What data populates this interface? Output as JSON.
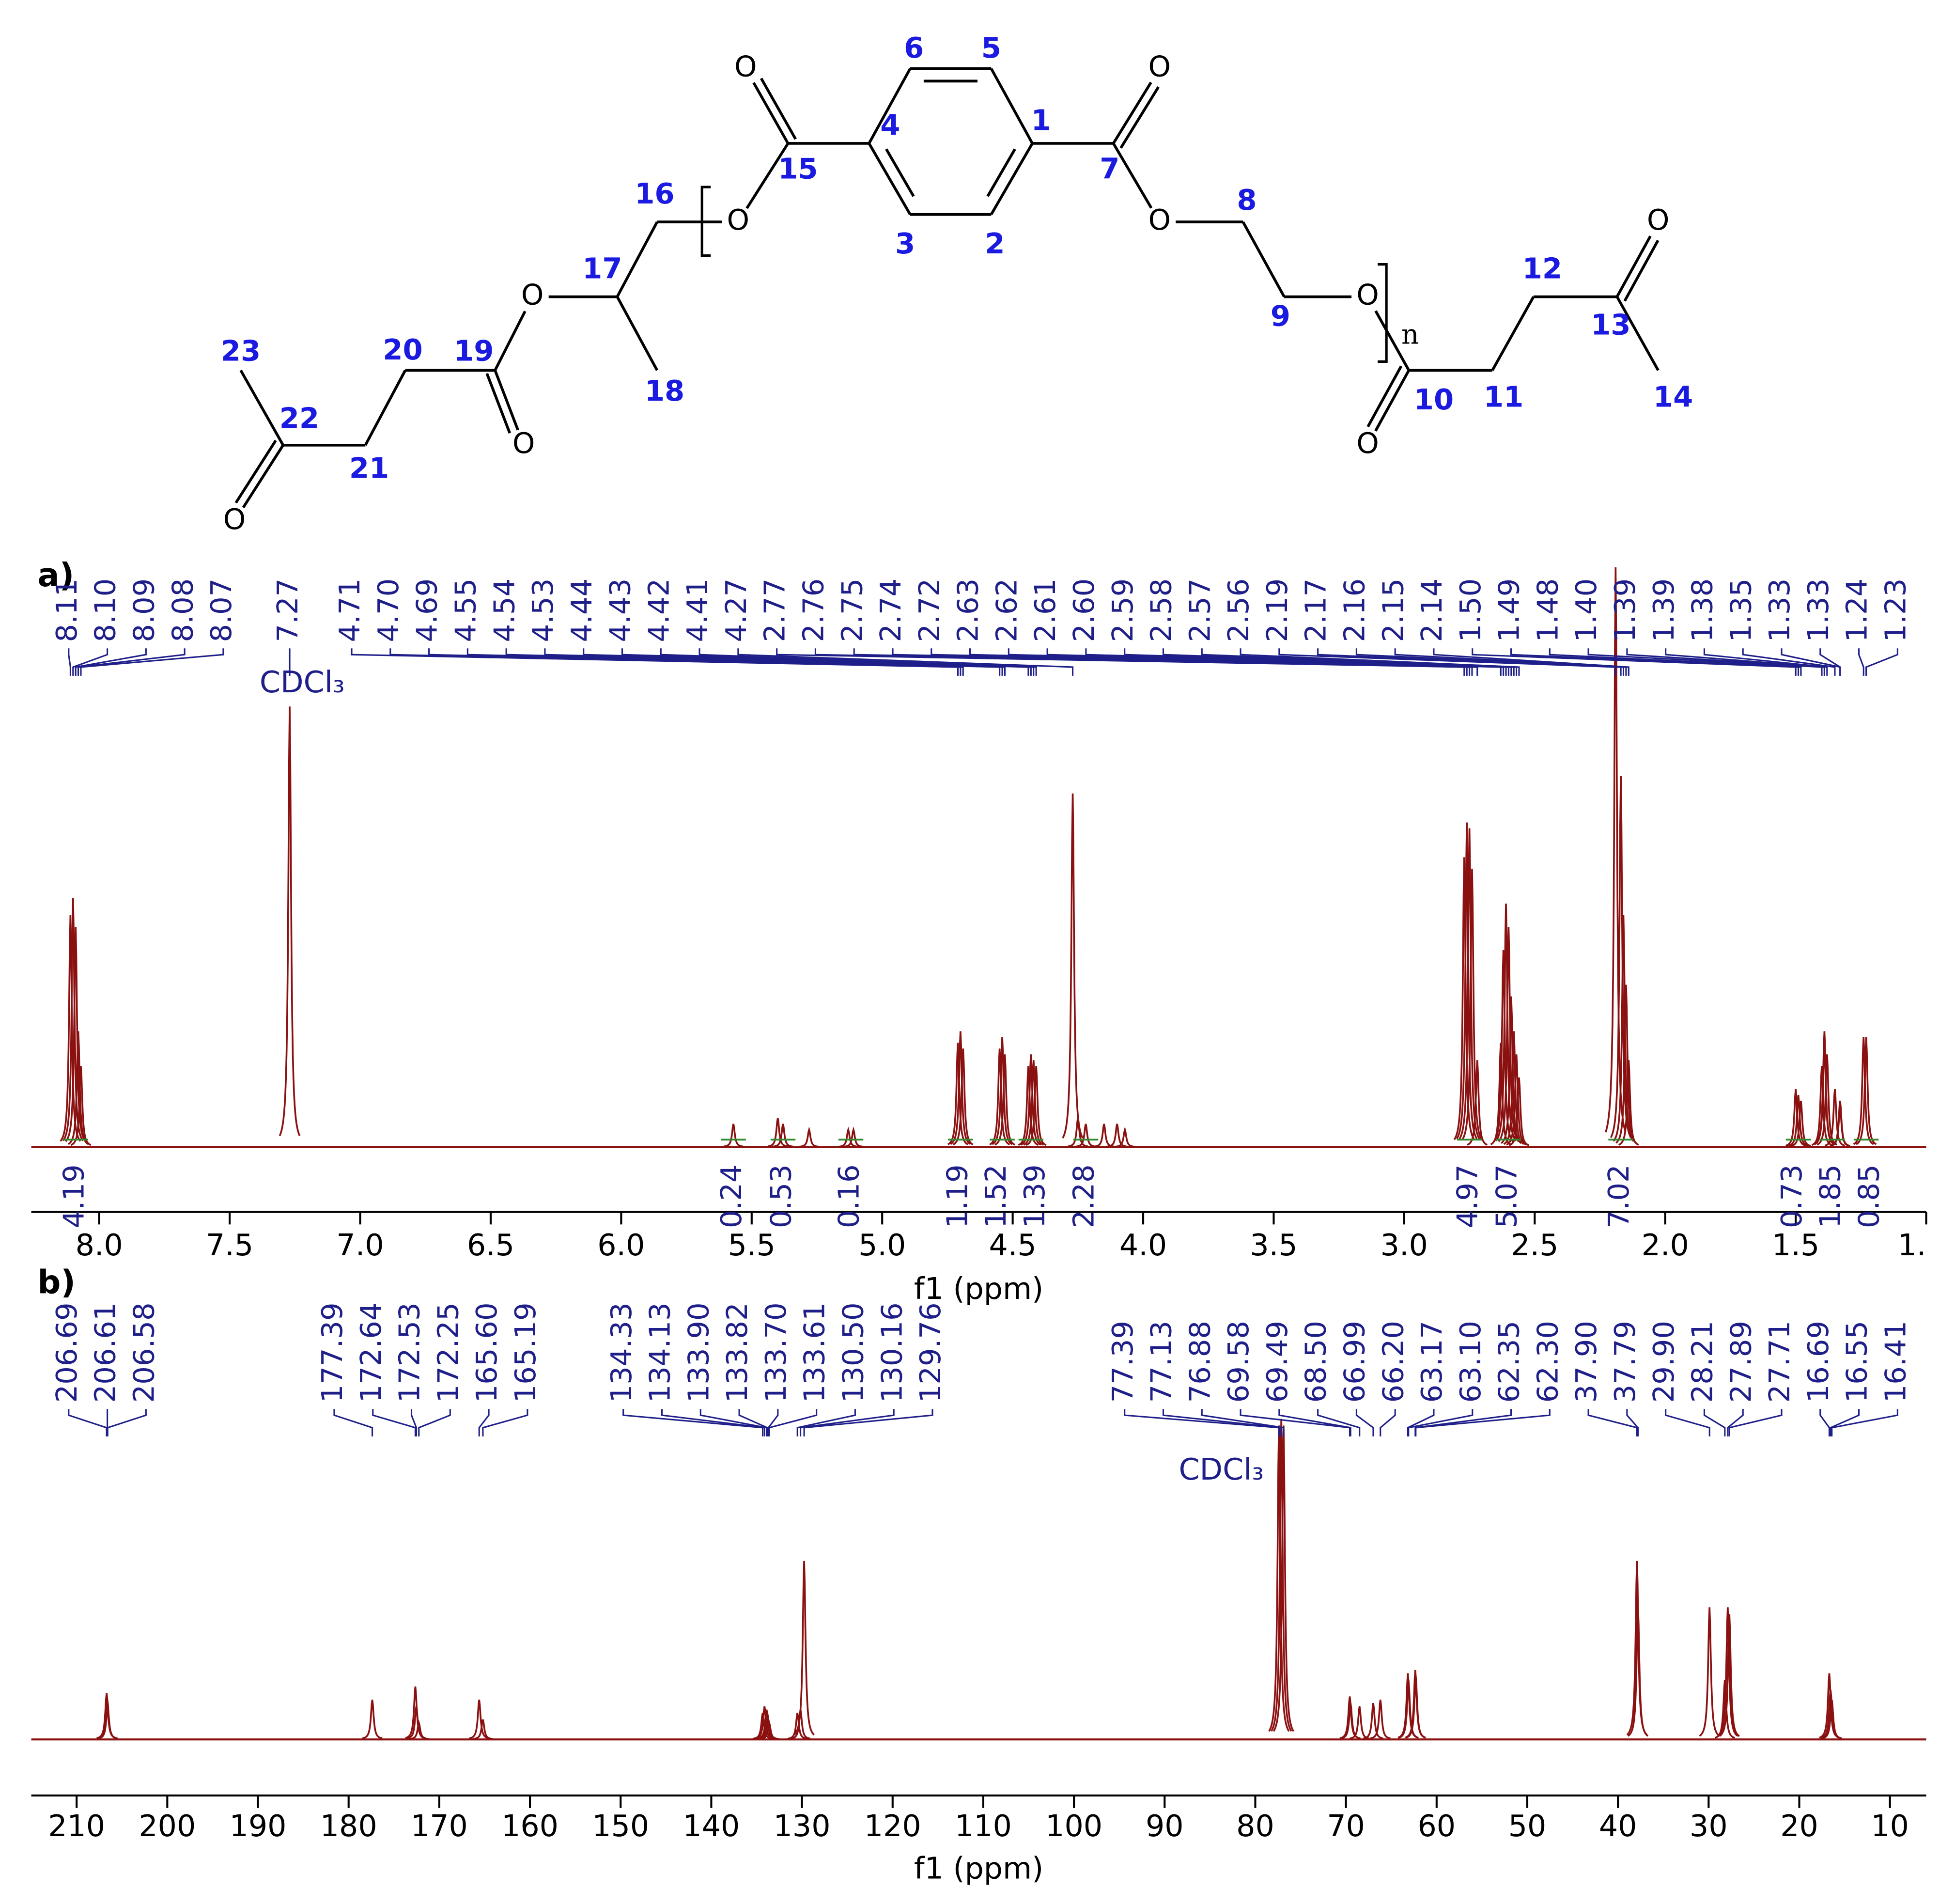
{
  "structure": {
    "atom_numbers": [
      "1",
      "2",
      "3",
      "4",
      "5",
      "6",
      "7",
      "8",
      "9",
      "10",
      "11",
      "12",
      "13",
      "14",
      "15",
      "16",
      "17",
      "18",
      "19",
      "20",
      "21",
      "22",
      "23"
    ],
    "oxygen_label": "O",
    "repeat_label": "n"
  },
  "chart_data": [
    {
      "type": "spectrum",
      "panel_label": "a)",
      "x_label": "f1 (ppm)",
      "solvent_label": "CDCl₃",
      "solvent_ppm": 7.27,
      "xlim": [
        8.26,
        1.0
      ],
      "ylim": [
        0,
        100
      ],
      "xticks": [
        {
          "value": 8,
          "label": "8.0"
        },
        7.5,
        {
          "value": 7,
          "label": "7.0"
        },
        6.5,
        {
          "value": 6,
          "label": "6.0"
        },
        5.5,
        {
          "value": 5,
          "label": "5.0"
        },
        4.5,
        {
          "value": 4,
          "label": "4.0"
        },
        3.5,
        {
          "value": 3,
          "label": "3.0"
        },
        2.5,
        {
          "value": 2,
          "label": "2.0"
        },
        1.5,
        {
          "value": 1,
          "label": "1."
        }
      ],
      "color": "#8b1010",
      "label_color": "#1f1f8a",
      "integral_color": "#2e8b2e",
      "x": [
        8.11,
        8.1,
        8.09,
        8.08,
        8.07,
        7.27,
        4.71,
        4.7,
        4.69,
        4.55,
        4.54,
        4.53,
        4.44,
        4.43,
        4.42,
        4.41,
        4.27,
        2.77,
        2.76,
        2.75,
        2.74,
        2.72,
        2.63,
        2.62,
        2.61,
        2.6,
        2.59,
        2.58,
        2.57,
        2.56,
        2.19,
        2.17,
        2.16,
        2.15,
        2.14,
        1.5,
        1.49,
        1.48,
        1.4,
        1.39,
        1.39,
        1.38,
        1.35,
        1.33,
        1.33,
        1.24,
        1.23
      ],
      "values": [
        40,
        43,
        38,
        20,
        14,
        76,
        18,
        20,
        17,
        17,
        19,
        16,
        14,
        16,
        15,
        14,
        61,
        50,
        56,
        55,
        48,
        15,
        18,
        34,
        42,
        38,
        26,
        20,
        16,
        12,
        100,
        64,
        40,
        28,
        15,
        10,
        9,
        8,
        14,
        20,
        18,
        16,
        10,
        8,
        7,
        19,
        19
      ],
      "peak_labels": [
        "8.11",
        "8.10",
        "8.09",
        "8.08",
        "8.07",
        "7.27",
        "4.71",
        "4.70",
        "4.69",
        "4.55",
        "4.54",
        "4.53",
        "4.44",
        "4.43",
        "4.42",
        "4.41",
        "4.27",
        "2.77",
        "2.76",
        "2.75",
        "2.74",
        "2.72",
        "2.63",
        "2.62",
        "2.61",
        "2.60",
        "2.59",
        "2.58",
        "2.57",
        "2.56",
        "2.19",
        "2.17",
        "2.16",
        "2.15",
        "2.14",
        "1.50",
        "1.49",
        "1.48",
        "1.40",
        "1.39",
        "1.39",
        "1.38",
        "1.35",
        "1.33",
        "1.33",
        "1.24",
        "1.23"
      ],
      "minor_x": [
        5.57,
        5.4,
        5.38,
        5.28,
        5.13,
        5.11,
        4.25,
        4.22,
        4.15,
        4.1,
        4.07
      ],
      "minor_values": [
        4,
        5,
        4,
        3,
        3,
        3,
        5,
        4,
        4,
        4,
        3
      ],
      "integral_x": [
        8.09,
        5.57,
        5.38,
        5.12,
        4.7,
        4.54,
        4.43,
        4.22,
        2.75,
        2.6,
        2.17,
        1.49,
        1.36,
        1.23
      ],
      "integrals": [
        4.19,
        0.24,
        0.53,
        0.16,
        1.19,
        1.52,
        1.39,
        2.28,
        4.97,
        5.07,
        7.02,
        0.73,
        1.85,
        0.85
      ]
    },
    {
      "type": "spectrum",
      "panel_label": "b)",
      "x_label": "f1 (ppm)",
      "solvent_label": "CDCl₃",
      "solvent_ppm": 77.13,
      "xlim": [
        215,
        6
      ],
      "ylim": [
        0,
        100
      ],
      "xticks": [
        210,
        200,
        190,
        180,
        170,
        160,
        150,
        140,
        130,
        120,
        110,
        100,
        90,
        80,
        70,
        60,
        50,
        40,
        30,
        20,
        10
      ],
      "color": "#8b1010",
      "label_color": "#1f1f8a",
      "x": [
        206.69,
        206.61,
        206.58,
        177.39,
        172.64,
        172.53,
        172.25,
        165.6,
        165.19,
        134.33,
        134.13,
        133.9,
        133.82,
        133.7,
        133.61,
        130.5,
        130.16,
        129.76,
        77.39,
        77.13,
        76.88,
        69.58,
        69.49,
        68.5,
        66.99,
        66.2,
        63.17,
        63.1,
        62.35,
        62.3,
        37.9,
        37.79,
        29.9,
        28.21,
        27.89,
        27.71,
        16.69,
        16.55,
        16.41
      ],
      "values": [
        14,
        12,
        10,
        12,
        16,
        10,
        5,
        12,
        6,
        8,
        10,
        9,
        8,
        6,
        5,
        8,
        9,
        54,
        95,
        97,
        95,
        13,
        11,
        10,
        11,
        12,
        20,
        18,
        21,
        19,
        54,
        40,
        40,
        18,
        40,
        38,
        20,
        15,
        12
      ],
      "peak_labels": [
        "206.69",
        "206.61",
        "206.58",
        "177.39",
        "172.64",
        "172.53",
        "172.25",
        "165.60",
        "165.19",
        "134.33",
        "134.13",
        "133.90",
        "133.82",
        "133.70",
        "133.61",
        "130.50",
        "130.16",
        "129.76",
        "77.39",
        "77.13",
        "76.88",
        "69.58",
        "69.49",
        "68.50",
        "66.99",
        "66.20",
        "63.17",
        "63.10",
        "62.35",
        "62.30",
        "37.90",
        "37.79",
        "29.90",
        "28.21",
        "27.89",
        "27.71",
        "16.69",
        "16.55",
        "16.41"
      ]
    }
  ]
}
